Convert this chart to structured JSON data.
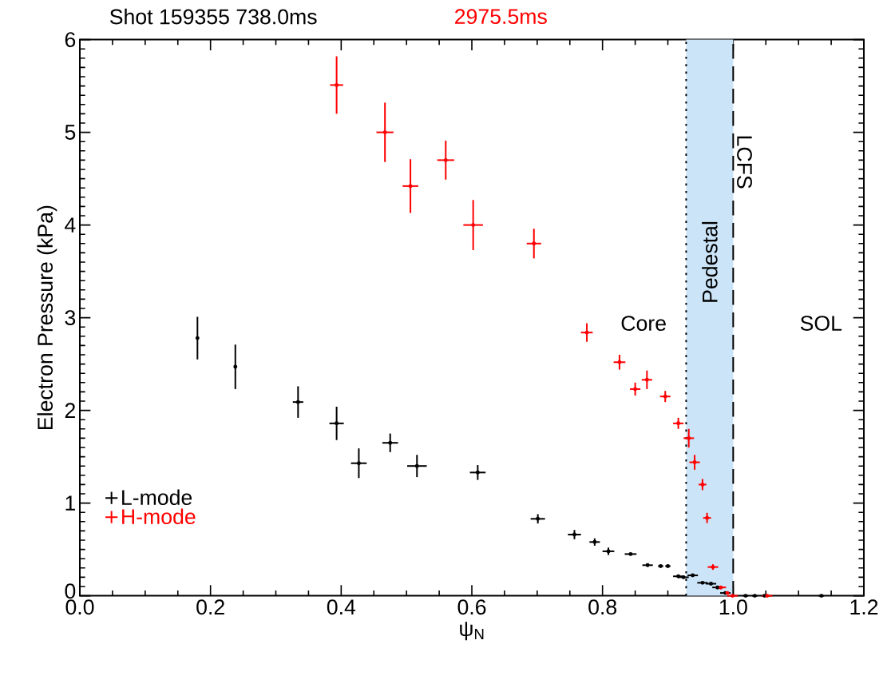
{
  "chart_data": {
    "type": "scatter",
    "title": "Shot 159355   738.0ms",
    "subtitle": "2975.5ms",
    "xlabel": "ψ$_{N}$",
    "ylabel": "Electron Pressure (kPa)",
    "xlim": [
      0,
      1.2
    ],
    "ylim": [
      0,
      6
    ],
    "xticks": [
      {
        "value": 0,
        "label": "0.0"
      },
      {
        "value": 0.2,
        "label": "0.2"
      },
      {
        "value": 0.4,
        "label": "0.4"
      },
      {
        "value": 0.6,
        "label": "0.6"
      },
      {
        "value": 0.8,
        "label": "0.8"
      },
      {
        "value": 1,
        "label": "1.0"
      },
      {
        "value": 1.2,
        "label": "1.2"
      }
    ],
    "yticks": [
      0,
      1,
      2,
      3,
      4,
      5,
      6
    ],
    "legend": "bottom left",
    "series": [
      {
        "name": "L-mode",
        "color": "#000000",
        "x": [
          0.18,
          0.238,
          0.334,
          0.393,
          0.427,
          0.475,
          0.516,
          0.609,
          0.701,
          0.757,
          0.788,
          0.809,
          0.843,
          0.869,
          0.889,
          0.9,
          0.916,
          0.924,
          0.938,
          0.953,
          0.966,
          0.976,
          0.988,
          1.019,
          1.033,
          1.048,
          1.135
        ],
        "values": [
          2.78,
          2.47,
          2.09,
          1.86,
          1.43,
          1.65,
          1.4,
          1.33,
          0.83,
          0.66,
          0.58,
          0.48,
          0.45,
          0.33,
          0.32,
          0.32,
          0.21,
          0.2,
          0.22,
          0.14,
          0.13,
          0.09,
          0.03,
          0.0,
          0.0,
          0.0,
          0.0
        ],
        "errors": [
          0.23,
          0.24,
          0.17,
          0.18,
          0.16,
          0.1,
          0.12,
          0.08,
          0.05,
          0.05,
          0.04,
          0.04,
          null,
          null,
          null,
          null,
          null,
          null,
          null,
          null,
          null,
          null,
          null,
          null,
          null,
          null,
          null
        ],
        "xerrors": [
          null,
          null,
          0.008,
          0.011,
          0.012,
          0.012,
          0.015,
          0.012,
          0.011,
          0.01,
          0.008,
          0.009,
          0.009,
          0.008,
          0.004,
          0.004,
          0.008,
          0.008,
          0.008,
          0.008,
          0.008,
          0.008,
          0.008,
          0.004,
          0.004,
          0.004,
          0.004
        ]
      },
      {
        "name": "H-mode",
        "color": "#ff0000",
        "x": [
          0.393,
          0.467,
          0.506,
          0.56,
          0.602,
          0.695,
          0.776,
          0.826,
          0.85,
          0.868,
          0.896,
          0.916,
          0.932,
          0.941,
          0.953,
          0.96,
          0.969,
          0.981,
          0.991,
          0.999,
          1.052
        ],
        "values": [
          5.51,
          5.0,
          4.42,
          4.7,
          4.0,
          3.8,
          2.84,
          2.52,
          2.23,
          2.33,
          2.15,
          1.86,
          1.7,
          1.44,
          1.2,
          0.84,
          0.31,
          0.09,
          0.03,
          0.0,
          0.0
        ],
        "errors": [
          0.31,
          0.32,
          0.29,
          0.21,
          0.27,
          0.16,
          0.1,
          0.08,
          0.07,
          0.1,
          0.06,
          0.06,
          0.1,
          0.08,
          0.06,
          0.055,
          0.03,
          null,
          null,
          null,
          null
        ],
        "xerrors": [
          0.01,
          0.013,
          0.012,
          0.013,
          0.015,
          0.011,
          0.009,
          0.009,
          0.008,
          0.008,
          0.008,
          0.008,
          0.008,
          0.008,
          0.006,
          0.006,
          0.008,
          0.008,
          null,
          0.008,
          0.008
        ]
      }
    ],
    "bands": [
      {
        "axis": "x",
        "from": 0.928,
        "to": 1.0,
        "label": "Pedestal",
        "color": "#cce4f7"
      }
    ],
    "ref_lines": [
      {
        "axis": "x",
        "value": 0.928,
        "line_style": "dotted"
      },
      {
        "axis": "x",
        "value": 1.0,
        "label": "LCFS",
        "line_style": "dashed"
      }
    ],
    "annotations": [
      "Core",
      "SOL"
    ]
  }
}
